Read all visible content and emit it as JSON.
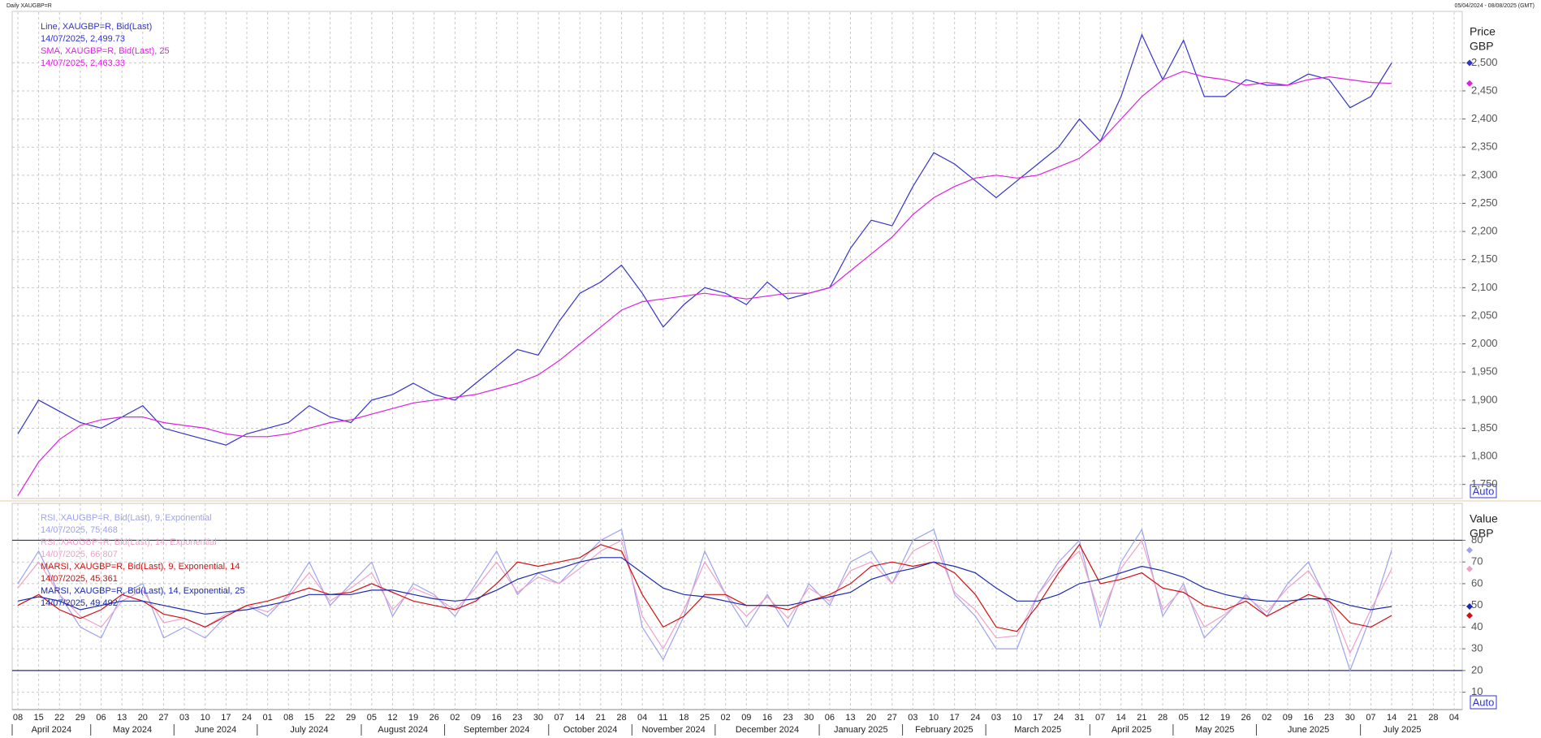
{
  "header": {
    "title": "Daily XAUGBP=R",
    "range": "05/04/2024 - 08/08/2025 (GMT)"
  },
  "chart_data": [
    {
      "type": "line",
      "y_axis_title": "Price",
      "y_axis_unit": "GBP",
      "scale_mode": "Auto",
      "categories": [
        "08",
        "15",
        "22",
        "29",
        "06",
        "13",
        "20",
        "27",
        "03",
        "10",
        "17",
        "24",
        "01",
        "08",
        "15",
        "22",
        "29",
        "05",
        "12",
        "19",
        "26",
        "02",
        "09",
        "16",
        "23",
        "30",
        "07",
        "14",
        "21",
        "28",
        "04",
        "11",
        "18",
        "25",
        "02",
        "09",
        "16",
        "23",
        "30",
        "06",
        "13",
        "20",
        "27",
        "03",
        "10",
        "17",
        "24",
        "03",
        "10",
        "17",
        "24",
        "31",
        "07",
        "14",
        "21",
        "28",
        "05",
        "12",
        "19",
        "26",
        "02",
        "09",
        "16",
        "23",
        "30",
        "07",
        "14",
        "21",
        "28",
        "04"
      ],
      "months": [
        "April 2024",
        "May 2024",
        "June 2024",
        "July 2024",
        "August 2024",
        "September 2024",
        "October 2024",
        "November 2024",
        "December 2024",
        "January 2025",
        "February 2025",
        "March 2025",
        "April 2025",
        "May 2025",
        "June 2025",
        "July 2025"
      ],
      "series": [
        {
          "name": "Line, XAUGBP=R, Bid(Last)",
          "last_label": "14/07/2025, 2,499.73",
          "color": "#3333cc",
          "values": [
            1840,
            1900,
            1880,
            1860,
            1850,
            1870,
            1890,
            1850,
            1840,
            1830,
            1820,
            1840,
            1850,
            1860,
            1890,
            1870,
            1860,
            1900,
            1910,
            1930,
            1910,
            1900,
            1930,
            1960,
            1990,
            1980,
            2040,
            2090,
            2110,
            2140,
            2090,
            2030,
            2070,
            2100,
            2090,
            2070,
            2110,
            2080,
            2090,
            2100,
            2170,
            2220,
            2210,
            2280,
            2340,
            2320,
            2290,
            2260,
            2290,
            2320,
            2350,
            2400,
            2360,
            2440,
            2550,
            2470,
            2540,
            2440,
            2440,
            2470,
            2460,
            2460,
            2480,
            2470,
            2420,
            2440,
            2499.73,
            null,
            null,
            null
          ]
        },
        {
          "name": "SMA, XAUGBP=R, Bid(Last),  25",
          "last_label": "14/07/2025, 2,463.33",
          "color": "#e020e0",
          "values": [
            1730,
            1790,
            1830,
            1855,
            1865,
            1870,
            1870,
            1860,
            1855,
            1850,
            1840,
            1835,
            1835,
            1840,
            1850,
            1860,
            1865,
            1875,
            1885,
            1895,
            1900,
            1905,
            1910,
            1920,
            1930,
            1945,
            1970,
            2000,
            2030,
            2060,
            2075,
            2080,
            2085,
            2090,
            2085,
            2080,
            2085,
            2090,
            2090,
            2100,
            2130,
            2160,
            2190,
            2230,
            2260,
            2280,
            2295,
            2300,
            2295,
            2300,
            2315,
            2330,
            2360,
            2400,
            2440,
            2470,
            2485,
            2475,
            2470,
            2460,
            2465,
            2460,
            2470,
            2475,
            2470,
            2465,
            2463.33,
            null,
            null,
            null
          ]
        }
      ],
      "ylim": [
        1725,
        2590
      ],
      "yticks": [
        {
          "value": 1750,
          "label": "1,750"
        },
        {
          "value": 1800,
          "label": "1,800"
        },
        {
          "value": 1850,
          "label": "1,850"
        },
        {
          "value": 1900,
          "label": "1,900"
        },
        {
          "value": 1950,
          "label": "1,950"
        },
        {
          "value": 2000,
          "label": "2,000"
        },
        {
          "value": 2050,
          "label": "2,050"
        },
        {
          "value": 2100,
          "label": "2,100"
        },
        {
          "value": 2150,
          "label": "2,150"
        },
        {
          "value": 2200,
          "label": "2,200"
        },
        {
          "value": 2250,
          "label": "2,250"
        },
        {
          "value": 2300,
          "label": "2,300"
        },
        {
          "value": 2350,
          "label": "2,350"
        },
        {
          "value": 2400,
          "label": "2,400"
        },
        {
          "value": 2450,
          "label": "2,450"
        },
        {
          "value": 2500,
          "label": "2,500"
        }
      ],
      "grid": true
    },
    {
      "type": "line",
      "y_axis_title": "Value",
      "y_axis_unit": "GBP",
      "scale_mode": "Auto",
      "series": [
        {
          "name": "RSI, XAUGBP=R, Bid(Last),  9, Exponential",
          "last_label": "14/07/2025, 75.468",
          "color": "#9ea2f0",
          "values": [
            60,
            75,
            55,
            40,
            35,
            55,
            60,
            35,
            40,
            35,
            45,
            50,
            45,
            55,
            70,
            50,
            60,
            70,
            45,
            60,
            55,
            45,
            60,
            75,
            55,
            65,
            60,
            70,
            80,
            85,
            40,
            25,
            45,
            75,
            55,
            40,
            55,
            40,
            60,
            50,
            70,
            75,
            60,
            80,
            85,
            55,
            45,
            30,
            30,
            55,
            70,
            80,
            40,
            70,
            85,
            45,
            60,
            35,
            45,
            55,
            45,
            60,
            70,
            50,
            20,
            45,
            75.468,
            null,
            null,
            null
          ]
        },
        {
          "name": "RSI, XAUGBP=R, Bid(Last),  14, Exponential",
          "last_label": "14/07/2025, 66.807",
          "color": "#f0a0c8",
          "values": [
            58,
            70,
            55,
            45,
            40,
            52,
            57,
            42,
            44,
            40,
            46,
            50,
            47,
            54,
            65,
            52,
            58,
            65,
            48,
            58,
            54,
            48,
            58,
            70,
            56,
            63,
            60,
            67,
            75,
            80,
            45,
            30,
            48,
            70,
            55,
            45,
            54,
            44,
            58,
            52,
            66,
            70,
            60,
            75,
            80,
            56,
            48,
            35,
            36,
            55,
            67,
            75,
            45,
            67,
            80,
            48,
            58,
            40,
            46,
            54,
            47,
            58,
            66,
            52,
            28,
            48,
            66.807,
            null,
            null,
            null
          ]
        },
        {
          "name": "MARSI, XAUGBP=R, Bid(Last),  9, Exponential, 14",
          "last_label": "14/07/2025, 45.361",
          "color": "#d01010",
          "values": [
            50,
            55,
            48,
            44,
            48,
            55,
            52,
            46,
            44,
            40,
            45,
            50,
            52,
            55,
            58,
            55,
            56,
            60,
            56,
            52,
            50,
            48,
            52,
            60,
            70,
            68,
            70,
            72,
            78,
            75,
            55,
            40,
            45,
            55,
            55,
            50,
            50,
            48,
            52,
            55,
            60,
            68,
            70,
            68,
            70,
            65,
            55,
            40,
            38,
            50,
            65,
            78,
            60,
            62,
            65,
            58,
            56,
            50,
            48,
            52,
            45,
            50,
            55,
            52,
            42,
            40,
            45.361,
            null,
            null,
            null
          ]
        },
        {
          "name": "MARSI, XAUGBP=R, Bid(Last),  14, Exponential, 25",
          "last_label": "14/07/2025, 49.492",
          "color": "#1a2ab0",
          "values": [
            52,
            54,
            52,
            48,
            50,
            52,
            52,
            50,
            48,
            46,
            47,
            48,
            50,
            52,
            55,
            55,
            55,
            57,
            57,
            55,
            53,
            52,
            53,
            57,
            62,
            65,
            67,
            70,
            72,
            72,
            65,
            58,
            55,
            54,
            52,
            50,
            50,
            50,
            52,
            54,
            56,
            62,
            65,
            67,
            70,
            68,
            65,
            58,
            52,
            52,
            55,
            60,
            62,
            65,
            68,
            66,
            63,
            58,
            55,
            53,
            52,
            52,
            53,
            53,
            50,
            48,
            49.492,
            null,
            null,
            null
          ]
        }
      ],
      "levels": [
        20,
        80
      ],
      "level_color": "#2a2a9a",
      "ylim": [
        2,
        97
      ],
      "yticks": [
        10,
        20,
        30,
        40,
        50,
        60,
        70,
        80
      ],
      "grid": true
    }
  ]
}
